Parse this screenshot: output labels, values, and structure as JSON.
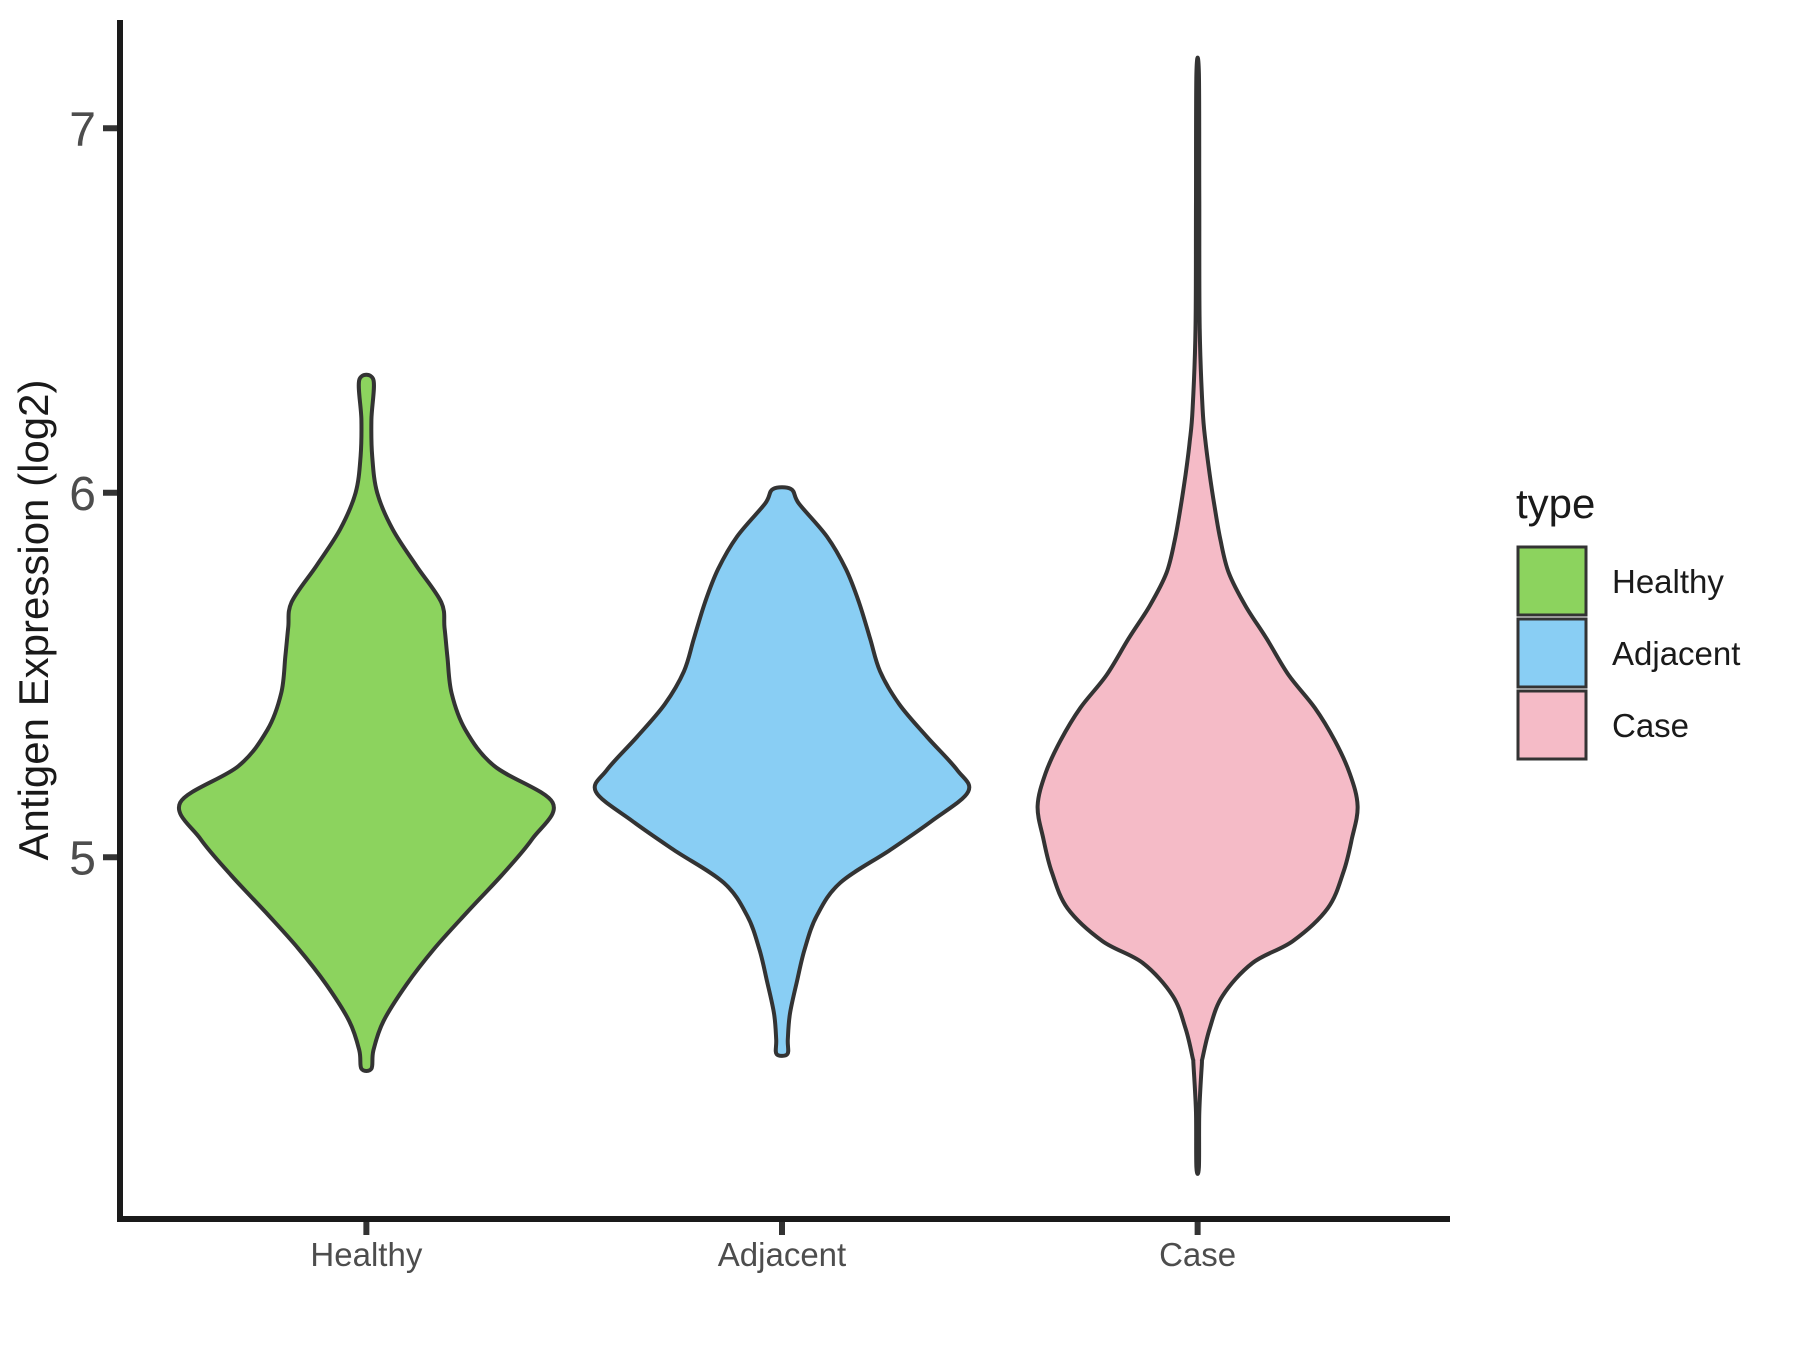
{
  "figure": {
    "background": "#ffffff",
    "outline_color": "#333333",
    "axis_color": "#1a1a1a",
    "tick_label_color": "#4d4d4d"
  },
  "y_axis": {
    "title": "Antigen Expression (log2)",
    "tick_labels": [
      "5",
      "6",
      "7"
    ],
    "tick_values": [
      5,
      6,
      7
    ],
    "range": [
      4.0,
      7.3
    ]
  },
  "x_axis": {
    "title": "",
    "categories": [
      "Healthy",
      "Adjacent",
      "Case"
    ]
  },
  "legend": {
    "title": "type",
    "entries": [
      {
        "label": "Healthy",
        "color": "#8CD35E"
      },
      {
        "label": "Adjacent",
        "color": "#89CEF4"
      },
      {
        "label": "Case",
        "color": "#F5BBC7"
      }
    ]
  },
  "chart_data": {
    "type": "violin",
    "title": "",
    "xlabel": "",
    "ylabel": "Antigen Expression (log2)",
    "ylim": [
      4.0,
      7.3
    ],
    "grid": false,
    "legend_position": "right",
    "note": "profile entries are [y_value_log2, half_width_in_category_axis_units]",
    "series": [
      {
        "name": "Healthy",
        "color": "#8CD35E",
        "position": 1,
        "min": 4.42,
        "max": 6.31,
        "peak_at": 5.15,
        "flat_top": true,
        "flat_bottom": true,
        "profile": [
          [
            6.31,
            0.017
          ],
          [
            6.2,
            0.012
          ],
          [
            6.1,
            0.014
          ],
          [
            6.0,
            0.026
          ],
          [
            5.9,
            0.063
          ],
          [
            5.8,
            0.12
          ],
          [
            5.7,
            0.18
          ],
          [
            5.63,
            0.188
          ],
          [
            5.55,
            0.195
          ],
          [
            5.45,
            0.205
          ],
          [
            5.35,
            0.238
          ],
          [
            5.25,
            0.308
          ],
          [
            5.15,
            0.448
          ],
          [
            5.05,
            0.399
          ],
          [
            4.95,
            0.325
          ],
          [
            4.85,
            0.243
          ],
          [
            4.75,
            0.164
          ],
          [
            4.65,
            0.096
          ],
          [
            4.55,
            0.041
          ],
          [
            4.47,
            0.017
          ],
          [
            4.42,
            0.012
          ]
        ]
      },
      {
        "name": "Adjacent",
        "color": "#89CEF4",
        "position": 2,
        "min": 4.46,
        "max": 6.01,
        "peak_at": 5.18,
        "flat_top": true,
        "flat_bottom": true,
        "profile": [
          [
            6.01,
            0.022
          ],
          [
            5.97,
            0.041
          ],
          [
            5.88,
            0.108
          ],
          [
            5.79,
            0.154
          ],
          [
            5.7,
            0.185
          ],
          [
            5.6,
            0.212
          ],
          [
            5.51,
            0.236
          ],
          [
            5.42,
            0.282
          ],
          [
            5.33,
            0.349
          ],
          [
            5.24,
            0.421
          ],
          [
            5.18,
            0.448
          ],
          [
            5.1,
            0.361
          ],
          [
            5.02,
            0.26
          ],
          [
            4.93,
            0.14
          ],
          [
            4.84,
            0.084
          ],
          [
            4.75,
            0.055
          ],
          [
            4.66,
            0.036
          ],
          [
            4.57,
            0.019
          ],
          [
            4.5,
            0.014
          ],
          [
            4.46,
            0.013
          ]
        ]
      },
      {
        "name": "Case",
        "color": "#F5BBC7",
        "position": 3,
        "min": 4.15,
        "max": 7.15,
        "peak_at": 5.14,
        "flat_top": false,
        "flat_bottom": false,
        "profile": [
          [
            7.15,
            0.003
          ],
          [
            6.8,
            0.004
          ],
          [
            6.45,
            0.005
          ],
          [
            6.23,
            0.012
          ],
          [
            6.14,
            0.019
          ],
          [
            6.05,
            0.029
          ],
          [
            5.96,
            0.041
          ],
          [
            5.87,
            0.055
          ],
          [
            5.78,
            0.075
          ],
          [
            5.69,
            0.115
          ],
          [
            5.6,
            0.166
          ],
          [
            5.5,
            0.219
          ],
          [
            5.41,
            0.282
          ],
          [
            5.32,
            0.33
          ],
          [
            5.23,
            0.366
          ],
          [
            5.14,
            0.385
          ],
          [
            5.05,
            0.371
          ],
          [
            4.96,
            0.351
          ],
          [
            4.86,
            0.313
          ],
          [
            4.77,
            0.229
          ],
          [
            4.71,
            0.132
          ],
          [
            4.62,
            0.06
          ],
          [
            4.53,
            0.029
          ],
          [
            4.45,
            0.012
          ],
          [
            4.43,
            0.01
          ],
          [
            4.3,
            0.004
          ],
          [
            4.15,
            0.003
          ]
        ]
      }
    ]
  }
}
